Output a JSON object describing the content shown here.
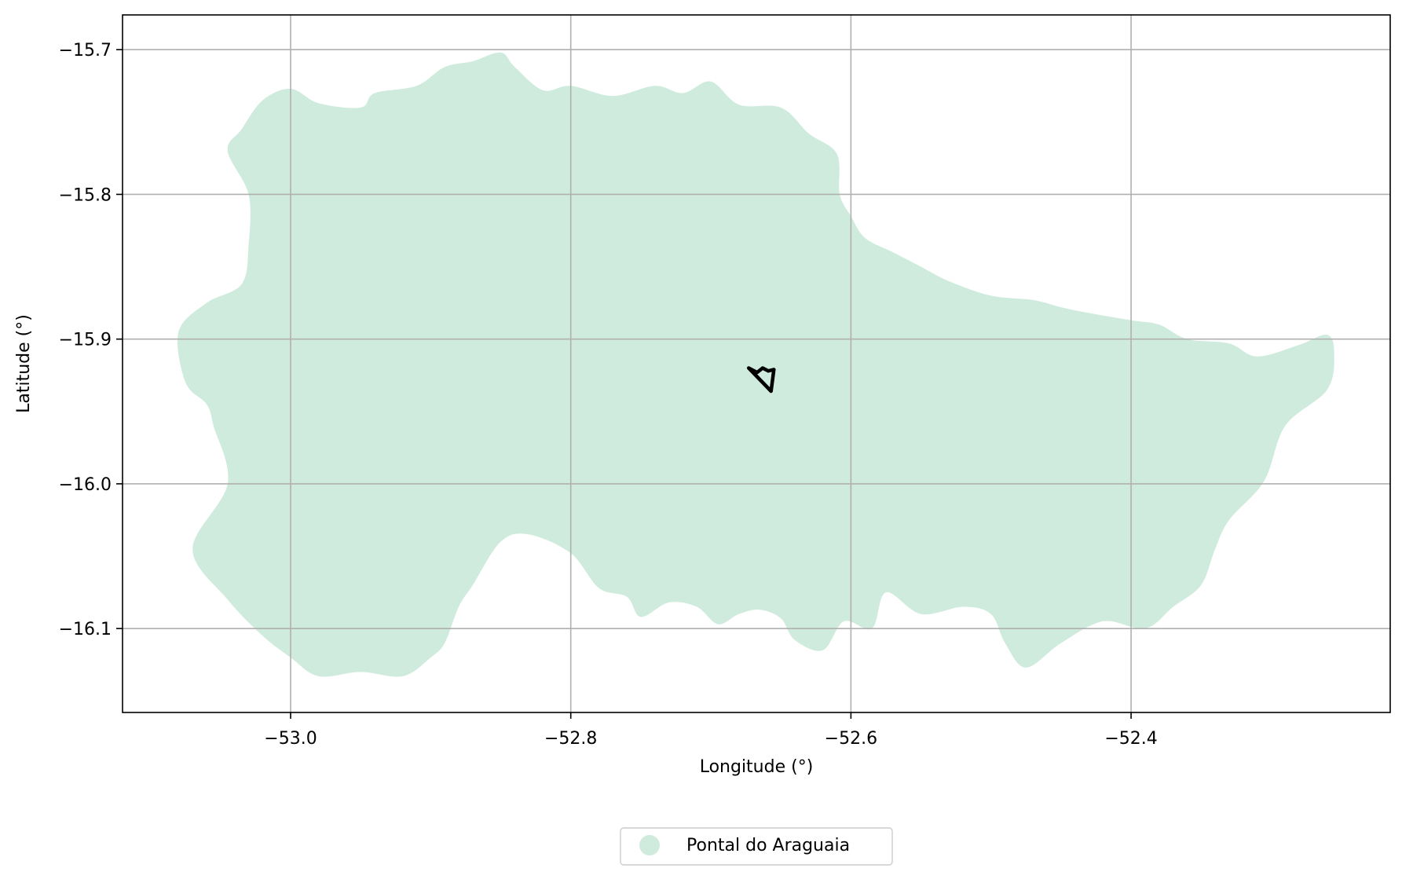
{
  "chart_data": {
    "type": "map",
    "title": "",
    "xlabel": "Longitude (°)",
    "ylabel": "Latitude (°)",
    "xlim": [
      -53.12,
      -52.215
    ],
    "ylim": [
      -16.158,
      -15.676
    ],
    "x_ticks": [
      -53.0,
      -52.8,
      -52.6,
      -52.4
    ],
    "x_tick_labels": [
      "−53.0",
      "−52.8",
      "−52.6",
      "−52.4"
    ],
    "y_ticks": [
      -15.7,
      -15.8,
      -15.9,
      -16.0,
      -16.1
    ],
    "y_tick_labels": [
      "−15.7",
      "−15.8",
      "−15.9",
      "−16.0",
      "−16.1"
    ],
    "grid": true,
    "legend": {
      "placement": "bottom-center, below axes",
      "entries": [
        {
          "label": "Pontal do Araguaia",
          "color": "#cfebdd",
          "marker": "circle"
        }
      ]
    },
    "region": {
      "name": "Pontal do Araguaia",
      "fill": "#cfebdd",
      "boundary": [
        [
          -53.0,
          -15.727
        ],
        [
          -52.98,
          -15.737
        ],
        [
          -52.95,
          -15.74
        ],
        [
          -52.94,
          -15.73
        ],
        [
          -52.91,
          -15.725
        ],
        [
          -52.89,
          -15.712
        ],
        [
          -52.87,
          -15.708
        ],
        [
          -52.85,
          -15.702
        ],
        [
          -52.84,
          -15.712
        ],
        [
          -52.82,
          -15.728
        ],
        [
          -52.8,
          -15.725
        ],
        [
          -52.77,
          -15.732
        ],
        [
          -52.74,
          -15.725
        ],
        [
          -52.72,
          -15.73
        ],
        [
          -52.7,
          -15.722
        ],
        [
          -52.68,
          -15.738
        ],
        [
          -52.65,
          -15.74
        ],
        [
          -52.63,
          -15.758
        ],
        [
          -52.61,
          -15.772
        ],
        [
          -52.608,
          -15.8
        ],
        [
          -52.6,
          -15.815
        ],
        [
          -52.59,
          -15.83
        ],
        [
          -52.57,
          -15.84
        ],
        [
          -52.55,
          -15.85
        ],
        [
          -52.53,
          -15.86
        ],
        [
          -52.5,
          -15.87
        ],
        [
          -52.47,
          -15.873
        ],
        [
          -52.45,
          -15.878
        ],
        [
          -52.43,
          -15.882
        ],
        [
          -52.4,
          -15.887
        ],
        [
          -52.38,
          -15.89
        ],
        [
          -52.36,
          -15.9
        ],
        [
          -52.33,
          -15.903
        ],
        [
          -52.31,
          -15.912
        ],
        [
          -52.28,
          -15.904
        ],
        [
          -52.26,
          -15.897
        ],
        [
          -52.255,
          -15.91
        ],
        [
          -52.26,
          -15.935
        ],
        [
          -52.29,
          -15.96
        ],
        [
          -52.305,
          -15.998
        ],
        [
          -52.33,
          -16.025
        ],
        [
          -52.34,
          -16.045
        ],
        [
          -52.35,
          -16.07
        ],
        [
          -52.37,
          -16.085
        ],
        [
          -52.39,
          -16.1
        ],
        [
          -52.42,
          -16.095
        ],
        [
          -52.45,
          -16.11
        ],
        [
          -52.475,
          -16.127
        ],
        [
          -52.49,
          -16.11
        ],
        [
          -52.5,
          -16.09
        ],
        [
          -52.52,
          -16.085
        ],
        [
          -52.55,
          -16.09
        ],
        [
          -52.575,
          -16.075
        ],
        [
          -52.585,
          -16.1
        ],
        [
          -52.605,
          -16.095
        ],
        [
          -52.62,
          -16.115
        ],
        [
          -52.64,
          -16.108
        ],
        [
          -52.65,
          -16.093
        ],
        [
          -52.665,
          -16.087
        ],
        [
          -52.68,
          -16.09
        ],
        [
          -52.695,
          -16.097
        ],
        [
          -52.71,
          -16.085
        ],
        [
          -52.73,
          -16.082
        ],
        [
          -52.75,
          -16.092
        ],
        [
          -52.76,
          -16.078
        ],
        [
          -52.78,
          -16.072
        ],
        [
          -52.8,
          -16.048
        ],
        [
          -52.83,
          -16.035
        ],
        [
          -52.85,
          -16.04
        ],
        [
          -52.87,
          -16.07
        ],
        [
          -52.88,
          -16.085
        ],
        [
          -52.89,
          -16.11
        ],
        [
          -52.9,
          -16.12
        ],
        [
          -52.92,
          -16.133
        ],
        [
          -52.95,
          -16.13
        ],
        [
          -52.98,
          -16.133
        ],
        [
          -53.0,
          -16.12
        ],
        [
          -53.02,
          -16.105
        ],
        [
          -53.045,
          -16.08
        ],
        [
          -53.07,
          -16.045
        ],
        [
          -53.045,
          -16.0
        ],
        [
          -53.055,
          -15.96
        ],
        [
          -53.06,
          -15.945
        ],
        [
          -53.075,
          -15.93
        ],
        [
          -53.08,
          -15.895
        ],
        [
          -53.06,
          -15.875
        ],
        [
          -53.035,
          -15.862
        ],
        [
          -53.03,
          -15.835
        ],
        [
          -53.03,
          -15.8
        ],
        [
          -53.045,
          -15.77
        ],
        [
          -53.035,
          -15.755
        ],
        [
          -53.02,
          -15.735
        ]
      ]
    },
    "features": [
      {
        "type": "polygon-outline",
        "color": "#000000",
        "boundary": [
          [
            -52.673,
            -15.92
          ],
          [
            -52.667,
            -15.923
          ],
          [
            -52.663,
            -15.92
          ],
          [
            -52.659,
            -15.922
          ],
          [
            -52.655,
            -15.921
          ],
          [
            -52.657,
            -15.936
          ],
          [
            -52.673,
            -15.92
          ]
        ]
      }
    ]
  }
}
